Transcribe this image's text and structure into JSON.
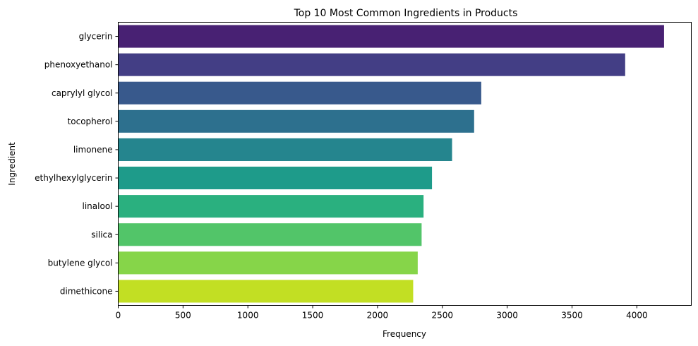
{
  "chart_data": {
    "type": "bar",
    "orientation": "horizontal",
    "title": "Top 10 Most Common Ingredients in Products",
    "xlabel": "Frequency",
    "ylabel": "Ingredient",
    "categories": [
      "glycerin",
      "phenoxyethanol",
      "caprylyl glycol",
      "tocopherol",
      "limonene",
      "ethylhexylglycerin",
      "linalool",
      "silica",
      "butylene glycol",
      "dimethicone"
    ],
    "values": [
      4210,
      3910,
      2800,
      2745,
      2575,
      2420,
      2355,
      2340,
      2310,
      2275
    ],
    "colors": [
      "#482173",
      "#433e85",
      "#38598c",
      "#2d708e",
      "#25858e",
      "#1e9b8a",
      "#2ab07f",
      "#52c569",
      "#86d549",
      "#c2df23"
    ],
    "xlim": [
      0,
      4420
    ],
    "xticks": [
      0,
      500,
      1000,
      1500,
      2000,
      2500,
      3000,
      3500,
      4000
    ],
    "grid": false,
    "legend": "none"
  }
}
